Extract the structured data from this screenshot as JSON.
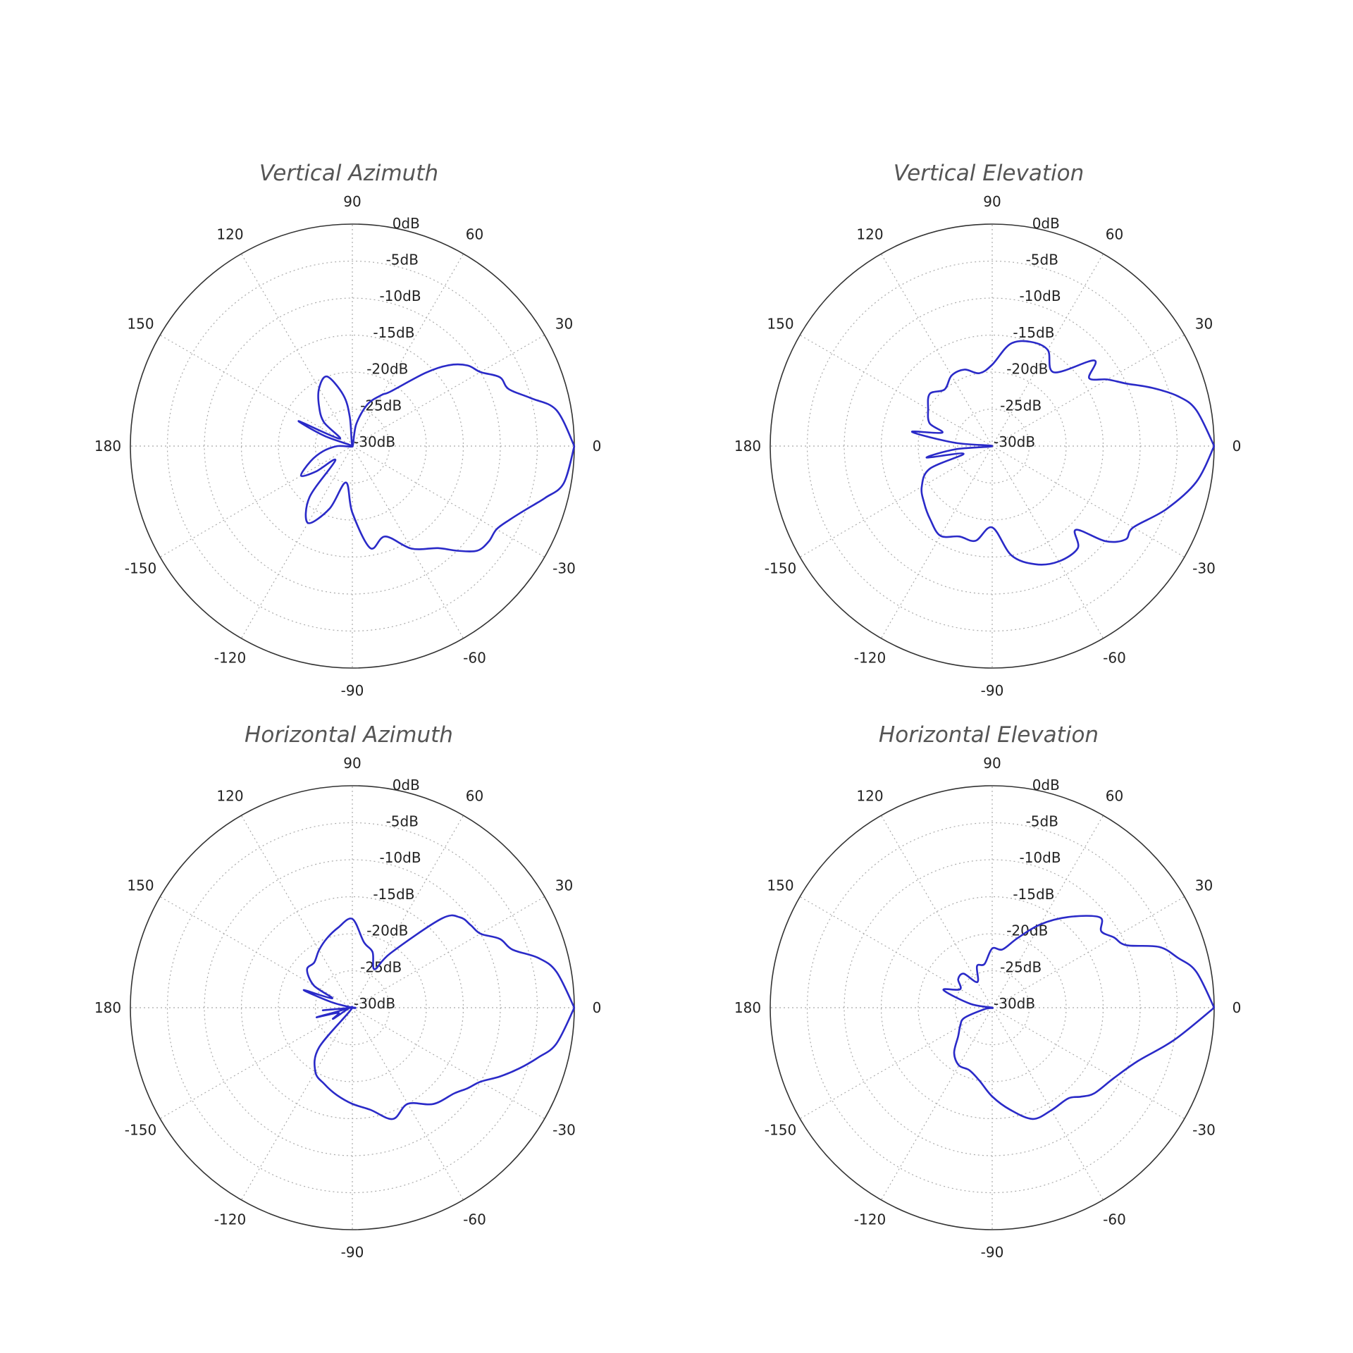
{
  "chart_data": [
    {
      "type": "polar",
      "title": "Vertical Azimuth",
      "angle_ticks": [
        "0",
        "30",
        "60",
        "90",
        "120",
        "150",
        "180",
        "-150",
        "-120",
        "-90",
        "-60",
        "-30"
      ],
      "radial_ticks": [
        "0dB",
        "-5dB",
        "-10dB",
        "-15dB",
        "-20dB",
        "-25dB",
        "-30dB"
      ],
      "rlim": [
        -30,
        0
      ],
      "grid": true,
      "series": [
        {
          "color": "#2a2ac8",
          "theta": [
            0,
            10,
            15,
            20,
            25,
            30,
            35,
            40,
            45,
            55,
            60,
            70,
            80,
            90,
            95,
            100,
            110,
            120,
            130,
            140,
            150,
            155,
            160,
            170,
            180,
            190,
            200,
            210,
            215,
            220,
            230,
            240,
            250,
            260,
            270,
            280,
            290,
            300,
            310,
            315,
            320,
            325,
            330,
            335,
            340,
            345,
            350,
            360
          ],
          "r": [
            0,
            -2,
            -5,
            -7.5,
            -8,
            -10,
            -11,
            -13,
            -16,
            -21,
            -22,
            -24,
            -27,
            -30,
            -26,
            -23,
            -20,
            -21,
            -23,
            -25,
            -28,
            -22,
            -26,
            -30,
            -28,
            -26,
            -24,
            -22,
            -24,
            -27,
            -21,
            -18,
            -21,
            -25,
            -21,
            -16,
            -17,
            -14,
            -12,
            -10,
            -8,
            -7.5,
            -7.5,
            -6.5,
            -5,
            -3,
            -1,
            0
          ]
        }
      ]
    },
    {
      "type": "polar",
      "title": "Vertical Elevation",
      "angle_ticks": [
        "0",
        "30",
        "60",
        "90",
        "120",
        "150",
        "180",
        "-150",
        "-120",
        "-90",
        "-60",
        "-30"
      ],
      "radial_ticks": [
        "0dB",
        "-5dB",
        "-10dB",
        "-15dB",
        "-20dB",
        "-25dB",
        "-30dB"
      ],
      "rlim": [
        -30,
        0
      ],
      "grid": true,
      "series": [
        {
          "color": "#2a2ac8",
          "theta": [
            0,
            10,
            15,
            20,
            25,
            30,
            35,
            40,
            50,
            60,
            70,
            80,
            90,
            100,
            110,
            120,
            130,
            140,
            150,
            160,
            165,
            170,
            175,
            180,
            185,
            190,
            195,
            200,
            210,
            220,
            230,
            240,
            250,
            260,
            270,
            280,
            290,
            300,
            310,
            315,
            320,
            325,
            330,
            340,
            350,
            360
          ],
          "r": [
            0,
            -2,
            -4,
            -7,
            -10,
            -12,
            -14,
            -12,
            -17,
            -15,
            -15,
            -16,
            -19,
            -20,
            -19,
            -19,
            -20,
            -19,
            -20,
            -21,
            -23,
            -19,
            -25,
            -30,
            -25,
            -21,
            -26,
            -21,
            -19,
            -18,
            -17,
            -16,
            -17,
            -17,
            -19,
            -15,
            -13,
            -12,
            -12,
            -14,
            -10,
            -8,
            -8,
            -5,
            -2,
            0
          ]
        }
      ]
    },
    {
      "type": "polar",
      "title": "Horizontal Azimuth",
      "angle_ticks": [
        "0",
        "30",
        "60",
        "90",
        "120",
        "150",
        "180",
        "-150",
        "-120",
        "-90",
        "-60",
        "-30"
      ],
      "radial_ticks": [
        "0dB",
        "-5dB",
        "-10dB",
        "-15dB",
        "-20dB",
        "-25dB",
        "-30dB"
      ],
      "rlim": [
        -30,
        0
      ],
      "grid": true,
      "series": [
        {
          "color": "#2a2ac8",
          "theta": [
            0,
            10,
            15,
            20,
            25,
            30,
            35,
            40,
            45,
            55,
            60,
            70,
            80,
            90,
            100,
            110,
            120,
            130,
            140,
            150,
            155,
            160,
            165,
            170,
            180,
            185,
            190,
            195,
            200,
            210,
            220,
            230,
            240,
            250,
            260,
            270,
            280,
            290,
            300,
            310,
            320,
            325,
            330,
            335,
            340,
            345,
            350,
            360
          ],
          "r": [
            0,
            -2,
            -4,
            -7,
            -8,
            -10,
            -10.5,
            -11,
            -13,
            -21,
            -24,
            -22,
            -21,
            -18,
            -19,
            -20,
            -21,
            -22,
            -22,
            -24,
            -27,
            -23,
            -27,
            -30,
            -30,
            -26,
            -29,
            -25,
            -28,
            -27,
            -30,
            -23,
            -20,
            -19,
            -18,
            -17,
            -16,
            -14,
            -15,
            -13,
            -12,
            -11,
            -10,
            -8,
            -6,
            -4,
            -2,
            0
          ]
        }
      ]
    },
    {
      "type": "polar",
      "title": "Horizontal Elevation",
      "angle_ticks": [
        "0",
        "30",
        "60",
        "90",
        "120",
        "150",
        "180",
        "-150",
        "-120",
        "-90",
        "-60",
        "-30"
      ],
      "radial_ticks": [
        "0dB",
        "-5dB",
        "-10dB",
        "-15dB",
        "-20dB",
        "-25dB",
        "-30dB"
      ],
      "rlim": [
        -30,
        0
      ],
      "grid": true,
      "series": [
        {
          "color": "#2a2ac8",
          "theta": [
            0,
            10,
            15,
            20,
            25,
            30,
            35,
            40,
            50,
            60,
            70,
            80,
            90,
            100,
            110,
            120,
            130,
            140,
            150,
            160,
            170,
            180,
            190,
            200,
            210,
            220,
            230,
            240,
            250,
            260,
            270,
            280,
            290,
            300,
            310,
            315,
            320,
            330,
            340,
            350,
            360
          ],
          "r": [
            0,
            -2,
            -4,
            -6,
            -10,
            -11,
            -12,
            -11,
            -14,
            -17,
            -20,
            -22,
            -22,
            -24,
            -24,
            -26,
            -24,
            -24,
            -25,
            -23,
            -27,
            -30,
            -29,
            -26,
            -25,
            -24,
            -22,
            -21,
            -21,
            -20,
            -18,
            -16,
            -14,
            -14,
            -14,
            -13,
            -12,
            -11,
            -9,
            -5,
            0
          ]
        }
      ]
    }
  ]
}
